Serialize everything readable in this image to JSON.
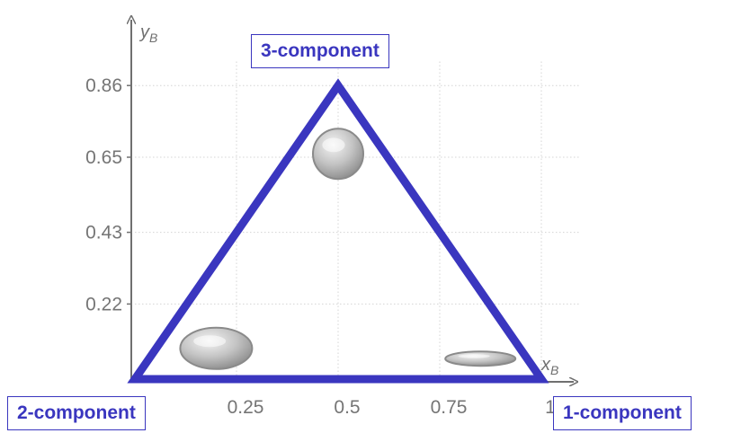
{
  "chart_data": {
    "type": "scatter",
    "x_axis": {
      "title": "x",
      "subscript": "B",
      "range": [
        0,
        1
      ],
      "ticks": [
        0.25,
        0.5,
        0.75,
        1
      ],
      "tick_labels": [
        "0.25",
        "0.5",
        "0.75",
        "1"
      ]
    },
    "y_axis": {
      "title": "y",
      "subscript": "B",
      "range": [
        0,
        0.86
      ],
      "ticks": [
        0.22,
        0.43,
        0.65,
        0.86
      ],
      "tick_labels": [
        "0.22",
        "0.43",
        "0.65",
        "0.86"
      ]
    },
    "grid": true,
    "triangle": {
      "color": "#3a36bf",
      "vertices": [
        {
          "x": 0,
          "y": 0,
          "label": "2-component"
        },
        {
          "x": 1,
          "y": 0,
          "label": "1-component"
        },
        {
          "x": 0.5,
          "y": 0.86,
          "label": "3-component"
        }
      ]
    },
    "droplets": [
      {
        "shape": "sphere",
        "x": 0.5,
        "y": 0.66
      },
      {
        "shape": "lens",
        "x": 0.2,
        "y": 0.09
      },
      {
        "shape": "flat",
        "x": 0.85,
        "y": 0.06
      }
    ]
  }
}
